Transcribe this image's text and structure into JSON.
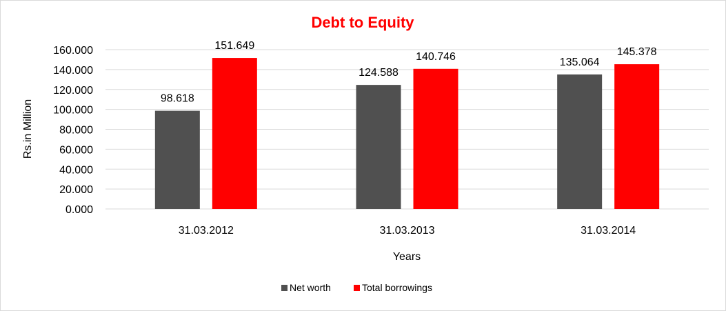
{
  "chart_data": {
    "type": "bar",
    "title": "Debt to Equity",
    "xlabel": "Years",
    "ylabel": "Rs.in Million",
    "categories": [
      "31.03.2012",
      "31.03.2013",
      "31.03.2014"
    ],
    "series": [
      {
        "name": "Net worth",
        "values": [
          98.618,
          124.588,
          135.064
        ],
        "color": "#505050"
      },
      {
        "name": "Total borrowings",
        "values": [
          151.649,
          140.746,
          145.378
        ],
        "color": "#ff0000"
      }
    ],
    "ylim": [
      0,
      160
    ],
    "yticks": [
      "0.000",
      "20.000",
      "40.000",
      "60.000",
      "80.000",
      "100.000",
      "120.000",
      "140.000",
      "160.000"
    ],
    "value_labels": [
      [
        "98.618",
        "124.588",
        "135.064"
      ],
      [
        "151.649",
        "140.746",
        "145.378"
      ]
    ],
    "grid": true,
    "legend_position": "bottom",
    "title_color": "#ff0000"
  }
}
